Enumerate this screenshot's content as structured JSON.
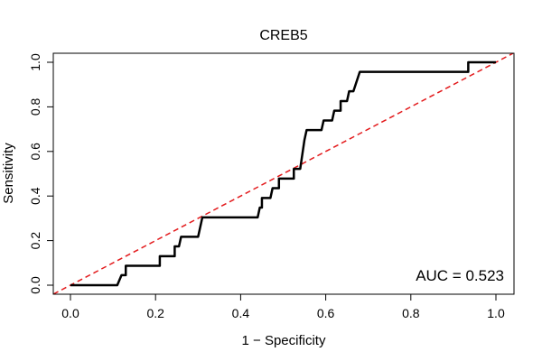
{
  "chart_data": {
    "type": "line",
    "title": "CREB5",
    "xlabel": "1 − Specificity",
    "ylabel": "Sensitivity",
    "xlim": [
      0,
      1
    ],
    "ylim": [
      0,
      1
    ],
    "xticks": [
      0.0,
      0.2,
      0.4,
      0.6,
      0.8,
      1.0
    ],
    "yticks": [
      0.0,
      0.2,
      0.4,
      0.6,
      0.8,
      1.0
    ],
    "xtick_labels": [
      "0.0",
      "0.2",
      "0.4",
      "0.6",
      "0.8",
      "1.0"
    ],
    "ytick_labels": [
      "0.0",
      "0.2",
      "0.4",
      "0.6",
      "0.8",
      "1.0"
    ],
    "annotation": "AUC = 0.523",
    "grid": false,
    "series": [
      {
        "name": "ROC",
        "color": "#000000",
        "style": "solid",
        "points": [
          [
            0.0,
            0.0
          ],
          [
            0.11,
            0.0
          ],
          [
            0.12,
            0.045
          ],
          [
            0.13,
            0.045
          ],
          [
            0.13,
            0.087
          ],
          [
            0.21,
            0.087
          ],
          [
            0.21,
            0.13
          ],
          [
            0.245,
            0.13
          ],
          [
            0.245,
            0.174
          ],
          [
            0.255,
            0.174
          ],
          [
            0.26,
            0.217
          ],
          [
            0.3,
            0.217
          ],
          [
            0.31,
            0.304
          ],
          [
            0.44,
            0.304
          ],
          [
            0.445,
            0.348
          ],
          [
            0.45,
            0.348
          ],
          [
            0.45,
            0.391
          ],
          [
            0.47,
            0.391
          ],
          [
            0.475,
            0.435
          ],
          [
            0.49,
            0.435
          ],
          [
            0.49,
            0.478
          ],
          [
            0.525,
            0.478
          ],
          [
            0.525,
            0.522
          ],
          [
            0.54,
            0.522
          ],
          [
            0.55,
            0.652
          ],
          [
            0.555,
            0.696
          ],
          [
            0.59,
            0.696
          ],
          [
            0.595,
            0.739
          ],
          [
            0.615,
            0.739
          ],
          [
            0.62,
            0.783
          ],
          [
            0.635,
            0.783
          ],
          [
            0.635,
            0.826
          ],
          [
            0.65,
            0.826
          ],
          [
            0.655,
            0.87
          ],
          [
            0.665,
            0.87
          ],
          [
            0.68,
            0.957
          ],
          [
            0.935,
            0.957
          ],
          [
            0.935,
            1.0
          ],
          [
            1.0,
            1.0
          ]
        ]
      },
      {
        "name": "reference",
        "color": "#e31a1c",
        "style": "dashed",
        "points": [
          [
            -0.04,
            -0.04
          ],
          [
            1.04,
            1.04
          ]
        ]
      }
    ]
  }
}
